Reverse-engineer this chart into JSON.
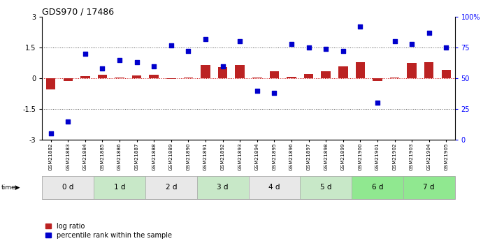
{
  "title": "GDS970 / 17486",
  "samples": [
    "GSM21882",
    "GSM21883",
    "GSM21884",
    "GSM21885",
    "GSM21886",
    "GSM21887",
    "GSM21888",
    "GSM21889",
    "GSM21890",
    "GSM21891",
    "GSM21892",
    "GSM21893",
    "GSM21894",
    "GSM21895",
    "GSM21896",
    "GSM21897",
    "GSM21898",
    "GSM21899",
    "GSM21900",
    "GSM21901",
    "GSM21902",
    "GSM21903",
    "GSM21904",
    "GSM21905"
  ],
  "log_ratio": [
    -0.55,
    -0.12,
    0.12,
    0.18,
    0.05,
    0.15,
    0.18,
    -0.04,
    0.05,
    0.65,
    0.55,
    0.65,
    0.05,
    0.35,
    0.08,
    0.2,
    0.35,
    0.6,
    0.8,
    -0.12,
    0.05,
    0.75,
    0.8,
    0.4
  ],
  "percentile": [
    5,
    15,
    70,
    58,
    65,
    63,
    60,
    77,
    72,
    82,
    60,
    80,
    40,
    38,
    78,
    75,
    74,
    72,
    92,
    30,
    80,
    78,
    87,
    75
  ],
  "time_groups": [
    {
      "label": "0 d",
      "start": 0,
      "end": 3,
      "color": "#e8e8e8"
    },
    {
      "label": "1 d",
      "start": 3,
      "end": 6,
      "color": "#c8e8c8"
    },
    {
      "label": "2 d",
      "start": 6,
      "end": 9,
      "color": "#e8e8e8"
    },
    {
      "label": "3 d",
      "start": 9,
      "end": 12,
      "color": "#c8e8c8"
    },
    {
      "label": "4 d",
      "start": 12,
      "end": 15,
      "color": "#e8e8e8"
    },
    {
      "label": "5 d",
      "start": 15,
      "end": 18,
      "color": "#c8e8c8"
    },
    {
      "label": "6 d",
      "start": 18,
      "end": 21,
      "color": "#90e890"
    },
    {
      "label": "7 d",
      "start": 21,
      "end": 24,
      "color": "#90e890"
    }
  ],
  "ylim": [
    -3,
    3
  ],
  "right_ylim": [
    0,
    100
  ],
  "bar_color": "#bb2222",
  "scatter_color": "#0000cc",
  "dotted_dark_color": "#555555",
  "hline_color": "#cc0000",
  "bg_color": "#ffffff",
  "legend_red": "log ratio",
  "legend_blue": "percentile rank within the sample",
  "n_samples": 24
}
